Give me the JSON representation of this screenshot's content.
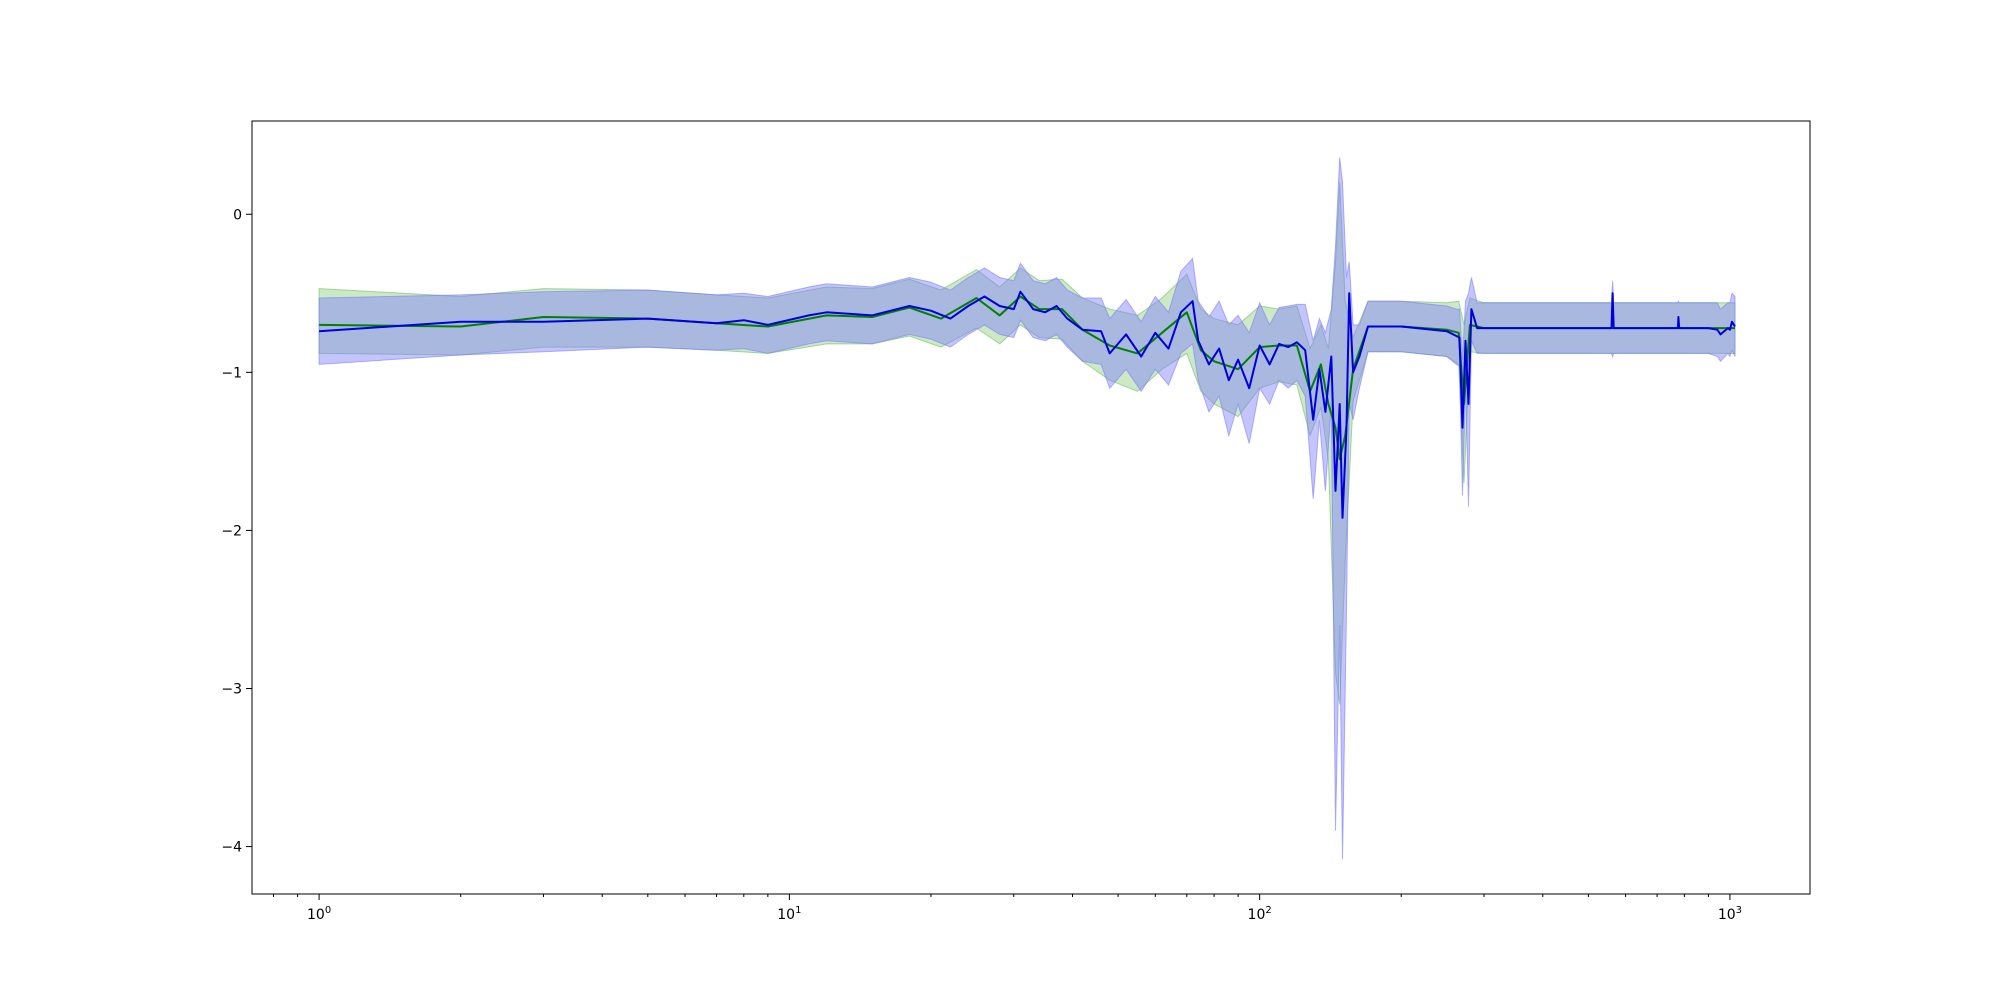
{
  "chart_data": {
    "type": "line",
    "title": "",
    "xlabel": "",
    "ylabel": "",
    "xscale": "log",
    "xlim": [
      0.72,
      1480
    ],
    "ylim": [
      -4.3,
      0.59
    ],
    "grid": false,
    "legend": "none",
    "x_ticks": [
      {
        "value": 1,
        "base": "10",
        "exp": "0"
      },
      {
        "value": 10,
        "base": "10",
        "exp": "1"
      },
      {
        "value": 100,
        "base": "10",
        "exp": "2"
      },
      {
        "value": 1000,
        "base": "10",
        "exp": "3"
      }
    ],
    "y_ticks": [
      {
        "value": 0,
        "label": "0"
      },
      {
        "value": -1,
        "label": "−1"
      },
      {
        "value": -2,
        "label": "−2"
      },
      {
        "value": -3,
        "label": "−3"
      },
      {
        "value": -4,
        "label": "−4"
      }
    ],
    "series": [
      {
        "color": "#008000",
        "band_color": "#6dbf5a",
        "x": [
          1,
          2,
          3,
          5,
          7,
          9,
          12,
          15,
          18,
          21,
          25,
          28,
          31,
          34,
          38,
          42,
          48,
          55,
          62,
          70,
          75,
          80,
          90,
          100,
          110,
          120,
          128,
          135,
          140,
          145,
          148,
          152,
          158,
          170,
          200,
          250,
          265,
          272,
          280,
          300,
          400,
          560,
          580,
          700,
          780,
          790,
          900,
          960,
          1000,
          1025
        ],
        "y": [
          -0.7,
          -0.71,
          -0.65,
          -0.66,
          -0.69,
          -0.71,
          -0.64,
          -0.65,
          -0.59,
          -0.66,
          -0.53,
          -0.64,
          -0.52,
          -0.6,
          -0.6,
          -0.73,
          -0.83,
          -0.88,
          -0.75,
          -0.62,
          -0.86,
          -0.93,
          -0.98,
          -0.84,
          -0.83,
          -0.83,
          -1.12,
          -0.95,
          -1.2,
          -1.35,
          -1.55,
          -1.4,
          -0.98,
          -0.71,
          -0.71,
          -0.73,
          -0.75,
          -1.2,
          -0.7,
          -0.72,
          -0.72,
          -0.72,
          -0.72,
          -0.72,
          -0.72,
          -0.72,
          -0.72,
          -0.72,
          -0.72,
          -0.72
        ],
        "lower": [
          -0.88,
          -0.89,
          -0.84,
          -0.84,
          -0.86,
          -0.88,
          -0.82,
          -0.82,
          -0.77,
          -0.84,
          -0.72,
          -0.82,
          -0.7,
          -0.78,
          -0.79,
          -0.93,
          -1.05,
          -1.12,
          -0.98,
          -0.88,
          -1.12,
          -1.2,
          -1.28,
          -1.1,
          -1.06,
          -1.08,
          -1.4,
          -1.22,
          -1.55,
          -2.9,
          -3.1,
          -2.2,
          -1.18,
          -0.87,
          -0.87,
          -0.9,
          -0.95,
          -1.7,
          -0.87,
          -0.88,
          -0.88,
          -0.88,
          -0.88,
          -0.88,
          -0.88,
          -0.88,
          -0.88,
          -0.88,
          -0.88,
          -0.88
        ],
        "upper": [
          -0.47,
          -0.52,
          -0.47,
          -0.48,
          -0.51,
          -0.53,
          -0.46,
          -0.47,
          -0.41,
          -0.48,
          -0.35,
          -0.46,
          -0.34,
          -0.42,
          -0.41,
          -0.53,
          -0.6,
          -0.64,
          -0.53,
          -0.38,
          -0.6,
          -0.66,
          -0.7,
          -0.58,
          -0.6,
          -0.58,
          -0.85,
          -0.7,
          -0.85,
          -0.3,
          0.2,
          -0.55,
          -0.78,
          -0.55,
          -0.55,
          -0.56,
          -0.55,
          -0.7,
          -0.53,
          -0.56,
          -0.56,
          -0.56,
          -0.56,
          -0.56,
          -0.56,
          -0.56,
          -0.56,
          -0.56,
          -0.56,
          -0.56
        ]
      },
      {
        "color": "#0000dd",
        "band_color": "#7d7dff",
        "x": [
          1,
          2,
          3,
          5,
          7,
          8,
          9,
          11,
          12,
          15,
          18,
          20,
          22,
          24,
          26,
          28,
          30,
          31,
          33,
          35,
          37,
          39,
          42,
          46,
          48,
          52,
          56,
          60,
          64,
          68,
          72,
          74,
          78,
          82,
          86,
          90,
          95,
          100,
          105,
          110,
          115,
          120,
          125,
          130,
          134,
          138,
          142,
          145,
          148,
          150,
          153,
          155,
          158,
          163,
          170,
          200,
          250,
          262,
          266,
          270,
          274,
          278,
          282,
          290,
          400,
          560,
          563,
          566,
          700,
          775,
          777,
          780,
          900,
          940,
          955,
          990,
          1000,
          1010,
          1025
        ],
        "y": [
          -0.74,
          -0.68,
          -0.68,
          -0.66,
          -0.69,
          -0.67,
          -0.7,
          -0.64,
          -0.62,
          -0.64,
          -0.58,
          -0.61,
          -0.66,
          -0.58,
          -0.52,
          -0.58,
          -0.6,
          -0.49,
          -0.6,
          -0.62,
          -0.58,
          -0.66,
          -0.73,
          -0.74,
          -0.88,
          -0.76,
          -0.9,
          -0.75,
          -0.85,
          -0.62,
          -0.55,
          -0.8,
          -0.95,
          -0.85,
          -1.05,
          -0.92,
          -1.1,
          -0.83,
          -0.95,
          -0.82,
          -0.84,
          -0.81,
          -0.86,
          -1.3,
          -0.98,
          -1.25,
          -0.9,
          -1.75,
          -1.2,
          -1.92,
          -1.35,
          -0.5,
          -1.0,
          -0.9,
          -0.71,
          -0.71,
          -0.74,
          -0.77,
          -0.78,
          -1.35,
          -0.8,
          -1.2,
          -0.6,
          -0.72,
          -0.72,
          -0.72,
          -0.5,
          -0.72,
          -0.72,
          -0.72,
          -0.65,
          -0.72,
          -0.72,
          -0.73,
          -0.76,
          -0.72,
          -0.73,
          -0.68,
          -0.71
        ],
        "lower": [
          -0.95,
          -0.89,
          -0.87,
          -0.84,
          -0.86,
          -0.85,
          -0.88,
          -0.82,
          -0.8,
          -0.82,
          -0.76,
          -0.79,
          -0.84,
          -0.76,
          -0.7,
          -0.76,
          -0.78,
          -0.67,
          -0.78,
          -0.8,
          -0.76,
          -0.84,
          -0.93,
          -0.95,
          -1.1,
          -0.98,
          -1.12,
          -0.98,
          -1.08,
          -0.88,
          -0.82,
          -1.05,
          -1.25,
          -1.15,
          -1.4,
          -1.2,
          -1.45,
          -1.1,
          -1.2,
          -1.05,
          -1.1,
          -1.05,
          -1.15,
          -1.8,
          -1.3,
          -1.75,
          -1.2,
          -3.9,
          -2.6,
          -4.08,
          -2.5,
          -1.2,
          -1.3,
          -1.1,
          -0.87,
          -0.87,
          -0.9,
          -0.95,
          -0.96,
          -1.78,
          -1.05,
          -1.85,
          -0.8,
          -0.88,
          -0.88,
          -0.88,
          -0.9,
          -0.88,
          -0.88,
          -0.88,
          -0.88,
          -0.88,
          -0.88,
          -0.9,
          -0.93,
          -0.88,
          -0.9,
          -0.86,
          -0.9
        ],
        "upper": [
          -0.53,
          -0.51,
          -0.49,
          -0.48,
          -0.51,
          -0.5,
          -0.52,
          -0.46,
          -0.44,
          -0.46,
          -0.4,
          -0.43,
          -0.48,
          -0.4,
          -0.34,
          -0.4,
          -0.42,
          -0.31,
          -0.42,
          -0.44,
          -0.4,
          -0.48,
          -0.53,
          -0.53,
          -0.66,
          -0.54,
          -0.68,
          -0.52,
          -0.62,
          -0.36,
          -0.28,
          -0.55,
          -0.65,
          -0.55,
          -0.7,
          -0.64,
          -0.75,
          -0.56,
          -0.7,
          -0.59,
          -0.58,
          -0.57,
          -0.57,
          -0.8,
          -0.66,
          -0.75,
          -0.6,
          -0.2,
          0.36,
          0.2,
          -0.4,
          -0.3,
          -0.7,
          -0.7,
          -0.55,
          -0.55,
          -0.58,
          -0.6,
          -0.6,
          -0.92,
          -0.55,
          -0.5,
          -0.4,
          -0.56,
          -0.56,
          -0.56,
          -0.42,
          -0.56,
          -0.56,
          -0.56,
          -0.55,
          -0.56,
          -0.56,
          -0.56,
          -0.6,
          -0.56,
          -0.56,
          -0.5,
          -0.52
        ]
      }
    ]
  }
}
